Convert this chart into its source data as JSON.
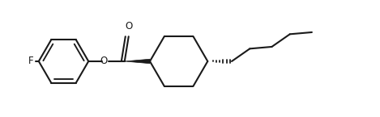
{
  "bg_color": "#ffffff",
  "line_color": "#1a1a1a",
  "line_width": 1.5,
  "fig_width": 4.69,
  "fig_height": 1.45,
  "dpi": 100,
  "xlim": [
    0,
    9.4
  ],
  "ylim": [
    0,
    2.9
  ]
}
